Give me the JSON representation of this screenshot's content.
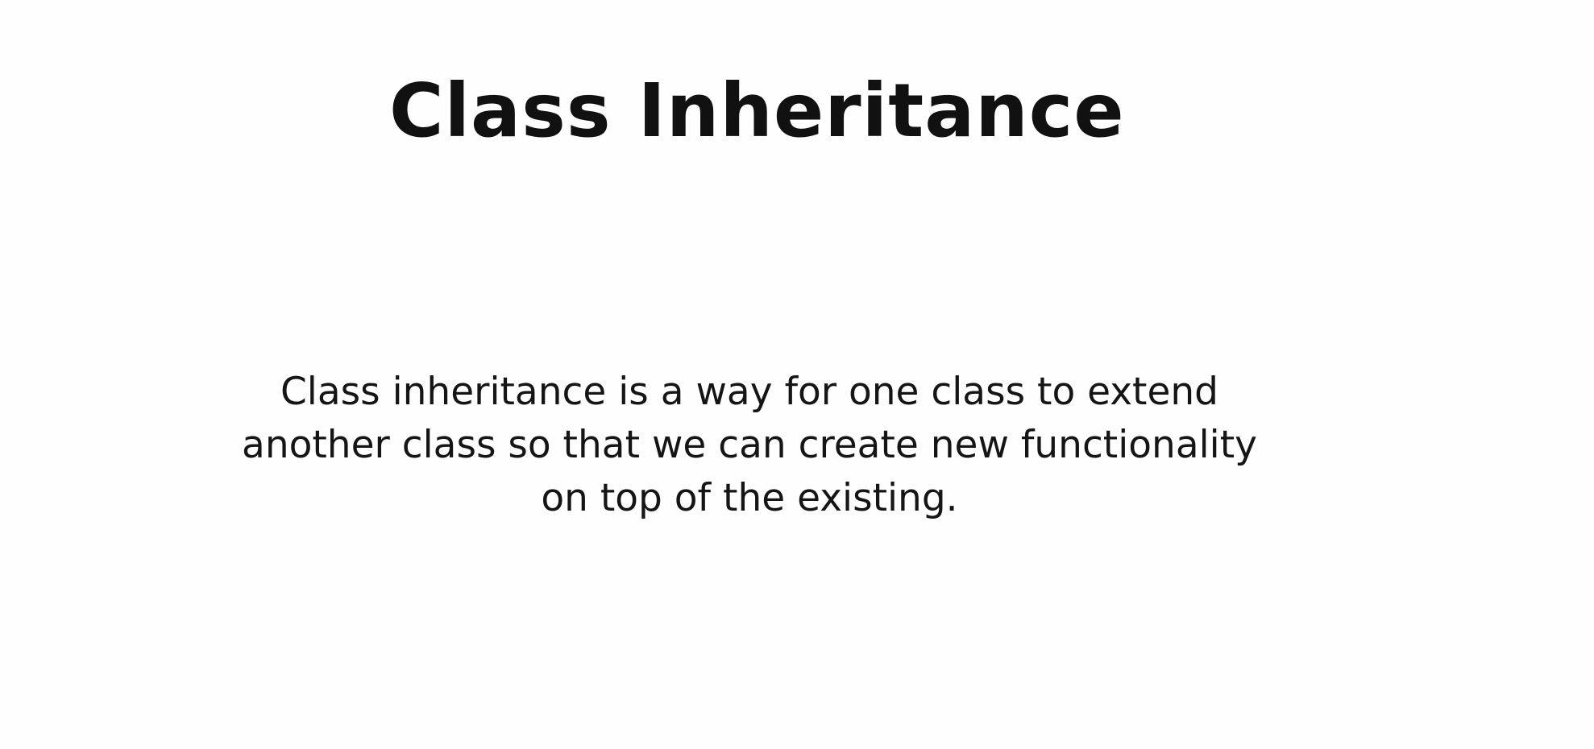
{
  "slide": {
    "title": "Class Inheritance",
    "body_lines": [
      "Class inheritance is a way for one class to extend",
      "another class so that we can create new functionality",
      "on top of the existing."
    ],
    "colors": {
      "background": "#fefefe",
      "title": "#111111",
      "body": "#151515"
    }
  }
}
